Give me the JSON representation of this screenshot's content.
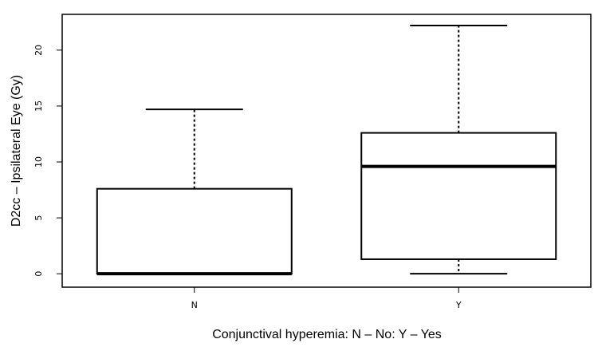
{
  "chart_data": {
    "type": "boxplot",
    "title": "",
    "xlabel": "Conjunctival hyperemia: N – No: Y – Yes",
    "ylabel": "D2cc – Ipsilateral Eye (Gy)",
    "ylim": [
      -1.2,
      23.2
    ],
    "yticks": [
      0,
      5,
      10,
      15,
      20
    ],
    "ytick_labels": [
      "0",
      "5",
      "10",
      "15",
      "20"
    ],
    "grid": false,
    "categories": [
      "N",
      "Y"
    ],
    "boxes": [
      {
        "category": "N",
        "whisker_low": 0.0,
        "q1": 0.0,
        "median": 0.0,
        "q3": 7.6,
        "whisker_high": 14.7
      },
      {
        "category": "Y",
        "whisker_low": 0.0,
        "q1": 1.3,
        "median": 9.6,
        "q3": 12.6,
        "whisker_high": 22.2
      }
    ]
  }
}
